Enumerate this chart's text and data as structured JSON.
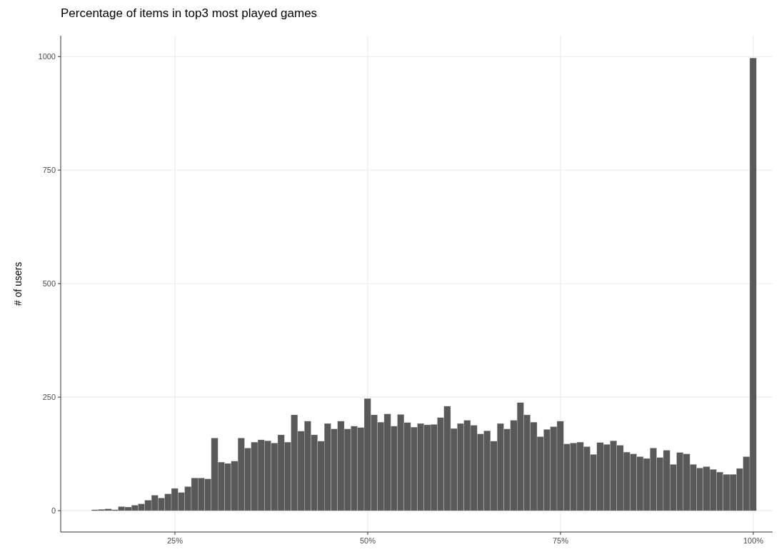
{
  "chart_data": {
    "type": "histogram",
    "title": "Percentage of items in top3 most played games",
    "ylabel": "# of users",
    "color": "#595959",
    "bins": [
      14.2,
      15.062,
      15.924,
      16.786,
      17.648,
      18.51,
      19.372,
      20.234,
      21.096,
      21.958,
      22.82,
      23.682,
      24.544,
      25.406,
      26.268,
      27.13,
      27.992,
      28.854,
      29.716,
      30.578,
      31.44,
      32.302,
      33.164,
      34.026,
      34.888,
      35.75,
      36.612,
      37.474,
      38.336,
      39.198,
      40.06,
      40.922,
      41.784,
      42.646,
      43.508,
      44.37,
      45.232,
      46.094,
      46.956,
      47.818,
      48.68,
      49.542,
      50.404,
      51.266,
      52.128,
      52.99,
      53.852,
      54.714,
      55.576,
      56.438,
      57.3,
      58.162,
      59.024,
      59.886,
      60.748,
      61.61,
      62.472,
      63.334,
      64.196,
      65.058,
      65.92,
      66.782,
      67.644,
      68.506,
      69.368,
      70.23,
      71.092,
      71.954,
      72.816,
      73.678,
      74.54,
      75.402,
      76.264,
      77.126,
      77.988,
      78.85,
      79.712,
      80.574,
      81.436,
      82.298,
      83.16,
      84.022,
      84.884,
      85.746,
      86.608,
      87.47,
      88.332,
      89.194,
      90.056,
      90.918,
      91.78,
      92.642,
      93.504,
      94.366,
      95.228,
      96.09,
      96.952,
      97.814,
      98.676,
      99.538,
      100.4
    ],
    "values": [
      2,
      3,
      4,
      2,
      9,
      8,
      12,
      15,
      23,
      34,
      28,
      37,
      49,
      40,
      53,
      72,
      72,
      70,
      160,
      107,
      104,
      109,
      160,
      138,
      151,
      156,
      154,
      149,
      167,
      151,
      211,
      175,
      197,
      167,
      153,
      192,
      180,
      197,
      180,
      186,
      183,
      247,
      211,
      195,
      213,
      186,
      212,
      194,
      184,
      192,
      189,
      190,
      205,
      230,
      181,
      192,
      199,
      188,
      169,
      176,
      153,
      192,
      180,
      199,
      238,
      211,
      195,
      163,
      179,
      185,
      197,
      147,
      149,
      151,
      141,
      124,
      150,
      146,
      154,
      144,
      129,
      125,
      119,
      115,
      138,
      117,
      133,
      102,
      128,
      125,
      102,
      94,
      97,
      91,
      85,
      80,
      80,
      93,
      119,
      997
    ],
    "xlim": [
      10.19,
      102.5
    ],
    "xticks": [
      {
        "value": 25,
        "label": "25%"
      },
      {
        "value": 50,
        "label": "50%"
      },
      {
        "value": 75,
        "label": "75%"
      },
      {
        "value": 100,
        "label": "100%"
      }
    ],
    "ylim": [
      -47,
      1046
    ],
    "yticks": [
      0,
      250,
      500,
      750,
      1000
    ],
    "grid": true
  }
}
